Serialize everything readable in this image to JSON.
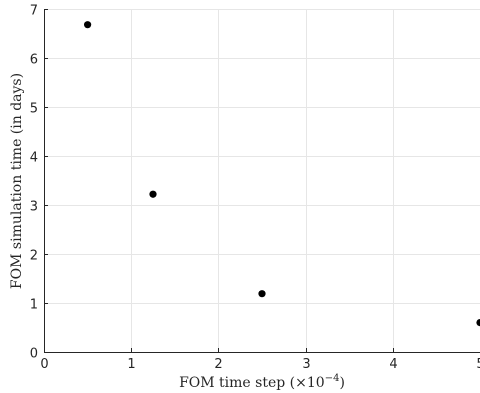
{
  "chart_data": {
    "type": "scatter",
    "title": "",
    "xlabel": "FOM time step (×10",
    "xlabel_exponent": "−4",
    "xlabel_suffix": ")",
    "ylabel": "FOM simulation time (in days)",
    "xlim": [
      0,
      5
    ],
    "ylim": [
      0,
      7
    ],
    "xticks": [
      "0",
      "1",
      "2",
      "3",
      "4",
      "5"
    ],
    "yticks": [
      "0",
      "1",
      "2",
      "3",
      "4",
      "5",
      "6",
      "7"
    ],
    "grid": true,
    "marker_color": "#000000",
    "points": [
      {
        "x": 0.5,
        "y": 6.68
      },
      {
        "x": 1.25,
        "y": 3.22
      },
      {
        "x": 2.5,
        "y": 1.19
      },
      {
        "x": 5.0,
        "y": 0.6
      }
    ]
  }
}
